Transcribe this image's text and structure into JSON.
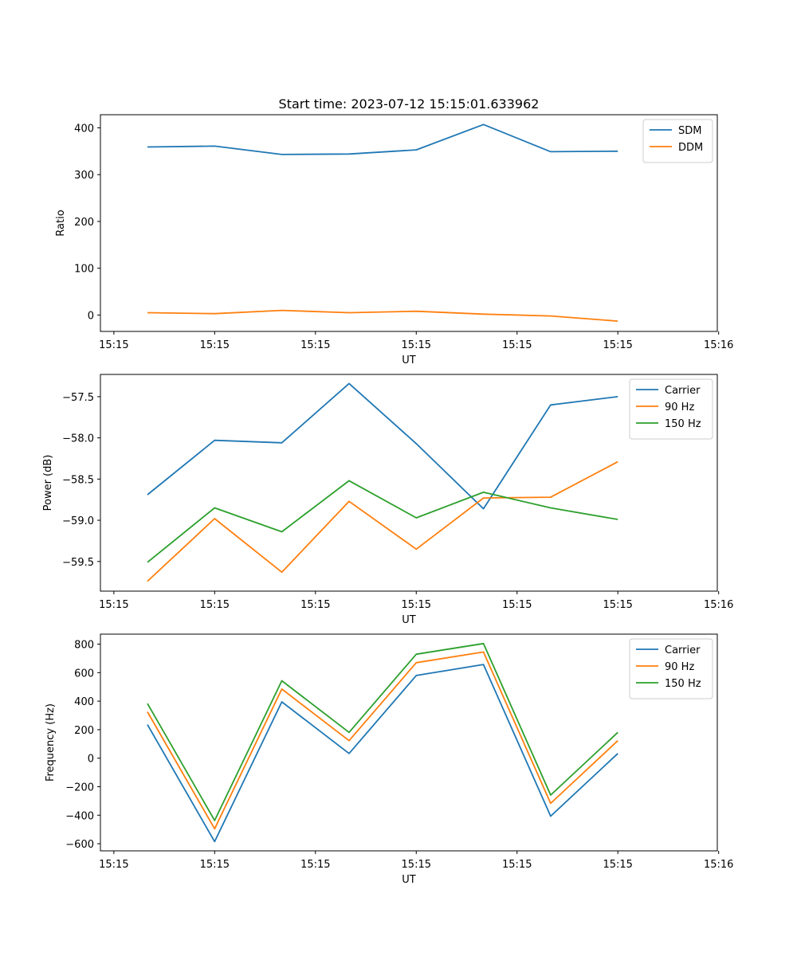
{
  "figure_title": "Start time: 2023-07-12 15:15:01.633962",
  "chart_data": [
    {
      "type": "line",
      "title": "Start time: 2023-07-12 15:15:01.633962",
      "xlabel": "UT",
      "ylabel": "Ratio",
      "x": [
        1,
        2,
        3,
        4,
        5,
        6,
        7,
        8
      ],
      "xlim": [
        0.3,
        9.48
      ],
      "xticks": [
        0.5,
        2,
        3.5,
        5,
        6.5,
        8,
        9.5
      ],
      "xtick_labels": [
        "15:15",
        "15:15",
        "15:15",
        "15:15",
        "15:15",
        "15:15",
        "15:16"
      ],
      "ylim": [
        -35,
        428
      ],
      "yticks": [
        0,
        100,
        200,
        300,
        400
      ],
      "ytick_labels": [
        "0",
        "100",
        "200",
        "300",
        "400"
      ],
      "legend_position": "top-right",
      "series": [
        {
          "name": "SDM",
          "color": "#1f77b4",
          "values": [
            359,
            361,
            343,
            344,
            353,
            407,
            349,
            350
          ]
        },
        {
          "name": "DDM",
          "color": "#ff7f0e",
          "values": [
            5,
            3,
            10,
            5,
            8,
            2,
            -2,
            -13
          ]
        }
      ]
    },
    {
      "type": "line",
      "title": "",
      "xlabel": "UT",
      "ylabel": "Power (dB)",
      "x": [
        1,
        2,
        3,
        4,
        5,
        6,
        7,
        8
      ],
      "xlim": [
        0.3,
        9.48
      ],
      "xticks": [
        0.5,
        2,
        3.5,
        5,
        6.5,
        8,
        9.5
      ],
      "xtick_labels": [
        "15:15",
        "15:15",
        "15:15",
        "15:15",
        "15:15",
        "15:15",
        "15:16"
      ],
      "ylim": [
        -59.86,
        -57.23
      ],
      "yticks": [
        -59.5,
        -59.0,
        -58.5,
        -58.0,
        -57.5
      ],
      "ytick_labels": [
        "−59.5",
        "−59.0",
        "−58.5",
        "−58.0",
        "−57.5"
      ],
      "legend_position": "top-right",
      "series": [
        {
          "name": "Carrier",
          "color": "#1f77b4",
          "values": [
            -58.69,
            -58.03,
            -58.06,
            -57.34,
            -58.07,
            -58.86,
            -57.6,
            -57.5
          ]
        },
        {
          "name": "90 Hz",
          "color": "#ff7f0e",
          "values": [
            -59.74,
            -58.98,
            -59.63,
            -58.77,
            -59.35,
            -58.73,
            -58.72,
            -58.29
          ]
        },
        {
          "name": "150 Hz",
          "color": "#2ca02c",
          "values": [
            -59.51,
            -58.85,
            -59.14,
            -58.52,
            -58.97,
            -58.66,
            -58.85,
            -58.99
          ]
        }
      ]
    },
    {
      "type": "line",
      "title": "",
      "xlabel": "UT",
      "ylabel": "Frequency (Hz)",
      "x": [
        1,
        2,
        3,
        4,
        5,
        6,
        7,
        8
      ],
      "xlim": [
        0.3,
        9.48
      ],
      "xticks": [
        0.5,
        2,
        3.5,
        5,
        6.5,
        8,
        9.5
      ],
      "xtick_labels": [
        "15:15",
        "15:15",
        "15:15",
        "15:15",
        "15:15",
        "15:15",
        "15:16"
      ],
      "ylim": [
        -650,
        870
      ],
      "yticks": [
        -600,
        -400,
        -200,
        0,
        200,
        400,
        600,
        800
      ],
      "ytick_labels": [
        "−600",
        "−400",
        "−200",
        "0",
        "200",
        "400",
        "600",
        "800"
      ],
      "legend_position": "top-right",
      "series": [
        {
          "name": "Carrier",
          "color": "#1f77b4",
          "values": [
            235,
            -585,
            395,
            33,
            580,
            657,
            -407,
            33
          ]
        },
        {
          "name": "90 Hz",
          "color": "#ff7f0e",
          "values": [
            325,
            -495,
            485,
            123,
            670,
            745,
            -317,
            123
          ]
        },
        {
          "name": "150 Hz",
          "color": "#2ca02c",
          "values": [
            383,
            -437,
            543,
            181,
            729,
            804,
            -259,
            181
          ]
        }
      ]
    }
  ]
}
